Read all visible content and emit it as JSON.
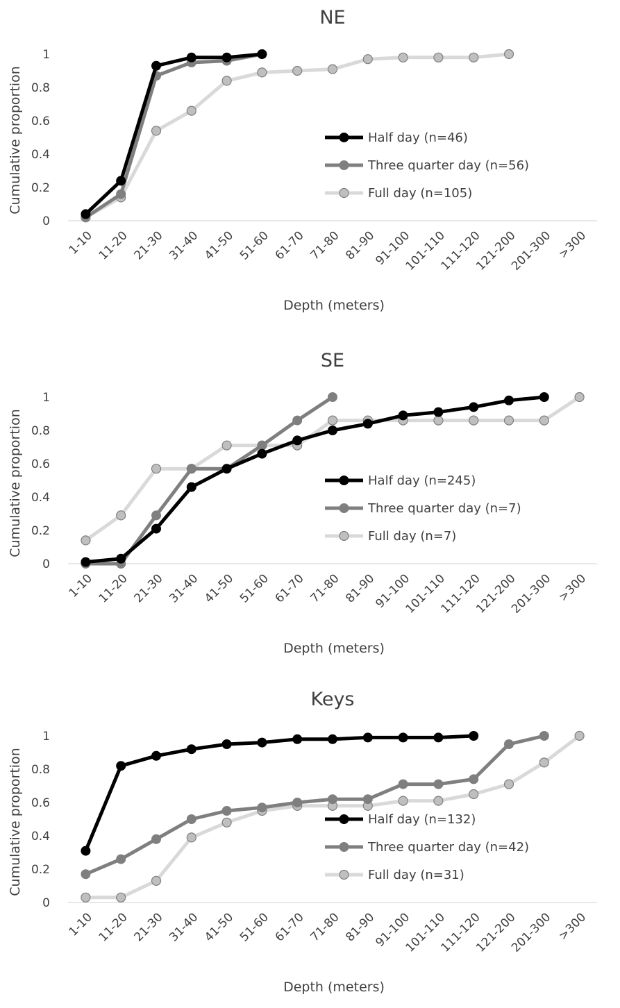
{
  "chart_data": [
    {
      "type": "line",
      "title": "NE",
      "xlabel": "Depth (meters)",
      "ylabel": "Cumulative proportion",
      "ylim": [
        0,
        1
      ],
      "yticks": [
        "0",
        "0.2",
        "0.4",
        "0.6",
        "0.8",
        "1"
      ],
      "grid": false,
      "legend_position": "center-right",
      "categories": [
        "1-10",
        "11-20",
        "21-30",
        "31-40",
        "41-50",
        "51-60",
        "61-70",
        "71-80",
        "81-90",
        "91-100",
        "101-110",
        "111-120",
        "121-200",
        "201-300",
        ">300"
      ],
      "series": [
        {
          "name": "Half day (n=46)",
          "color": "#000000",
          "values": [
            0.04,
            0.24,
            0.93,
            0.98,
            0.98,
            1.0,
            null,
            null,
            null,
            null,
            null,
            null,
            null,
            null,
            null
          ]
        },
        {
          "name": "Three quarter day (n=56)",
          "color": "#7f7f7f",
          "values": [
            0.02,
            0.16,
            0.87,
            0.95,
            0.96,
            1.0,
            null,
            null,
            null,
            null,
            null,
            null,
            null,
            null,
            null
          ]
        },
        {
          "name": "Full day (n=105)",
          "color": "#d9d9d9",
          "values": [
            0.02,
            0.14,
            0.54,
            0.66,
            0.84,
            0.89,
            0.9,
            0.91,
            0.97,
            0.98,
            0.98,
            0.98,
            1.0,
            null,
            null
          ]
        }
      ]
    },
    {
      "type": "line",
      "title": "SE",
      "xlabel": "Depth (meters)",
      "ylabel": "Cumulative proportion",
      "ylim": [
        0,
        1
      ],
      "yticks": [
        "0",
        "0.2",
        "0.4",
        "0.6",
        "0.8",
        "1"
      ],
      "grid": false,
      "legend_position": "center-right",
      "categories": [
        "1-10",
        "11-20",
        "21-30",
        "31-40",
        "41-50",
        "51-60",
        "61-70",
        "71-80",
        "81-90",
        "91-100",
        "101-110",
        "111-120",
        "121-200",
        "201-300",
        ">300"
      ],
      "series": [
        {
          "name": "Half day (n=245)",
          "color": "#000000",
          "values": [
            0.01,
            0.03,
            0.21,
            0.46,
            0.57,
            0.66,
            0.74,
            0.8,
            0.84,
            0.89,
            0.91,
            0.94,
            0.98,
            1.0,
            null
          ]
        },
        {
          "name": "Three quarter day (n=7)",
          "color": "#7f7f7f",
          "values": [
            0.0,
            0.0,
            0.29,
            0.57,
            0.57,
            0.71,
            0.86,
            1.0,
            null,
            null,
            null,
            null,
            null,
            null,
            null
          ]
        },
        {
          "name": "Full day (n=7)",
          "color": "#d9d9d9",
          "values": [
            0.14,
            0.29,
            0.57,
            0.57,
            0.71,
            0.71,
            0.71,
            0.86,
            0.86,
            0.86,
            0.86,
            0.86,
            0.86,
            0.86,
            1.0
          ]
        }
      ]
    },
    {
      "type": "line",
      "title": "Keys",
      "xlabel": "Depth (meters)",
      "ylabel": "Cumulative proportion",
      "ylim": [
        0,
        1
      ],
      "yticks": [
        "0",
        "0.2",
        "0.4",
        "0.6",
        "0.8",
        "1"
      ],
      "grid": false,
      "legend_position": "center-right",
      "categories": [
        "1-10",
        "11-20",
        "21-30",
        "31-40",
        "41-50",
        "51-60",
        "61-70",
        "71-80",
        "81-90",
        "91-100",
        "101-110",
        "111-120",
        "121-200",
        "201-300",
        ">300"
      ],
      "series": [
        {
          "name": "Half day (n=132)",
          "color": "#000000",
          "values": [
            0.31,
            0.82,
            0.88,
            0.92,
            0.95,
            0.96,
            0.98,
            0.98,
            0.99,
            0.99,
            0.99,
            1.0,
            null,
            null,
            null
          ]
        },
        {
          "name": "Three quarter day (n=42)",
          "color": "#7f7f7f",
          "values": [
            0.17,
            0.26,
            0.38,
            0.5,
            0.55,
            0.57,
            0.6,
            0.62,
            0.62,
            0.71,
            0.71,
            0.74,
            0.95,
            1.0,
            null
          ]
        },
        {
          "name": "Full day (n=31)",
          "color": "#d9d9d9",
          "values": [
            0.03,
            0.03,
            0.13,
            0.39,
            0.48,
            0.55,
            0.58,
            0.58,
            0.58,
            0.61,
            0.61,
            0.65,
            0.71,
            0.84,
            1.0
          ]
        }
      ]
    }
  ]
}
